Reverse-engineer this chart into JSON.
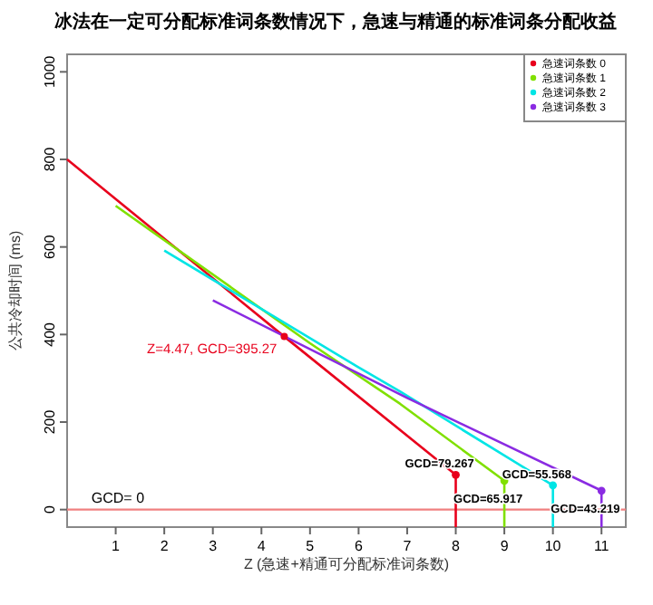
{
  "chart_data": {
    "type": "line",
    "title": "冰法在一定可分配标准词条数情况下，急速与精通的标准词条分配收益",
    "xlabel": "Z (急速+精通可分配标准词条数)",
    "ylabel": "公共冷却时间 (ms)",
    "xlim": [
      0,
      11.5
    ],
    "ylim": [
      -40,
      1040
    ],
    "xticks": [
      1,
      2,
      3,
      4,
      5,
      6,
      7,
      8,
      9,
      10,
      11
    ],
    "yticks": [
      0,
      200,
      400,
      600,
      800,
      1000
    ],
    "grid": false,
    "legend": "top right",
    "series": [
      {
        "name": "急速词条数 0",
        "color": "#e8001c",
        "x": [
          0,
          4.47,
          8
        ],
        "values": [
          800,
          395.27,
          79.267
        ]
      },
      {
        "name": "急速词条数 1",
        "color": "#80e000",
        "x": [
          1,
          5,
          6.85,
          9
        ],
        "values": [
          694,
          380,
          242,
          65.917
        ]
      },
      {
        "name": "急速词条数 2",
        "color": "#00e5e5",
        "x": [
          2,
          6,
          6.85,
          10
        ],
        "values": [
          592,
          325,
          270,
          55.568
        ]
      },
      {
        "name": "急速词条数 3",
        "color": "#8a2be2",
        "x": [
          3,
          7,
          11
        ],
        "values": [
          478,
          255,
          43.219
        ]
      },
      {
        "type": "line",
        "color": "#e8001c",
        "x": [
          8,
          8
        ],
        "values": [
          -40,
          79.267
        ]
      },
      {
        "type": "line",
        "color": "#80e000",
        "x": [
          9,
          9
        ],
        "values": [
          -40,
          65.917
        ]
      },
      {
        "type": "line",
        "color": "#00e5e5",
        "x": [
          10,
          10
        ],
        "values": [
          -40,
          55.568
        ]
      },
      {
        "type": "line",
        "color": "#8a2be2",
        "x": [
          11,
          11
        ],
        "values": [
          -40,
          43.219
        ]
      }
    ],
    "ref_lines": [
      {
        "axis": "y",
        "value": 0,
        "label": "GCD= 0",
        "color": "#f08080"
      }
    ],
    "annotations": [
      {
        "text": "Z=4.47, GCD=395.27",
        "x": 4.47,
        "y": 395.27
      },
      {
        "text": "GCD=79.267",
        "x": 8,
        "y": 79.267
      },
      {
        "text": "GCD=65.917",
        "x": 9,
        "y": 65.917
      },
      {
        "text": "GCD=55.568",
        "x": 10,
        "y": 55.568
      },
      {
        "text": "GCD=43.219",
        "x": 11,
        "y": 43.219
      }
    ]
  }
}
